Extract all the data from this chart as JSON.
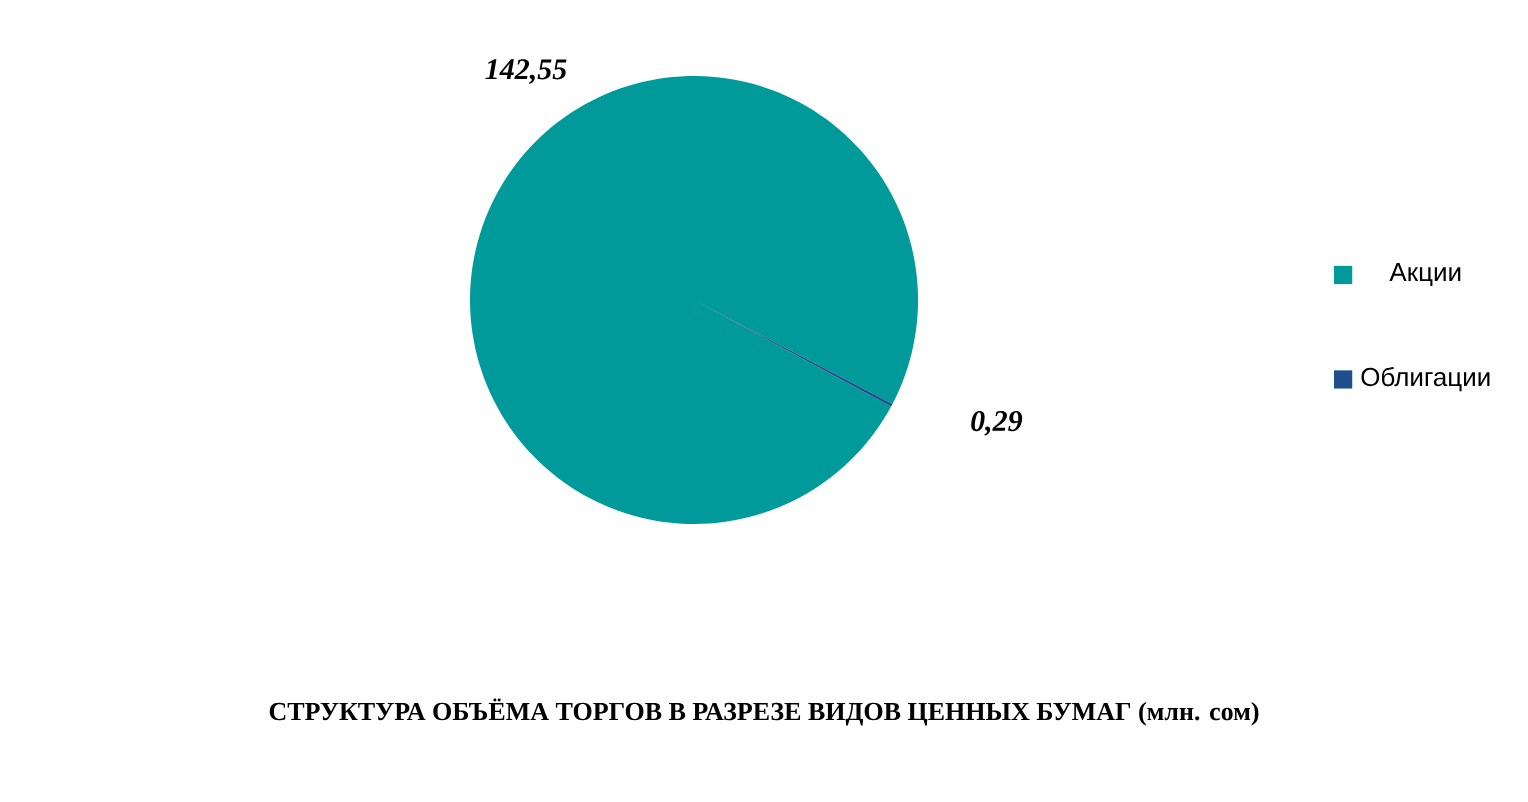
{
  "chart_data": {
    "type": "pie",
    "title": "СТРУКТУРА ОБЪЁМА ТОРГОВ В РАЗРЕЗЕ ВИДОВ ЦЕННЫХ БУМАГ  (млн. сом)",
    "categories": [
      "Акции",
      "Облигации"
    ],
    "values": [
      142.55,
      0.29
    ],
    "value_labels": [
      "142,55",
      "0,29"
    ],
    "colors": [
      "#009a9a",
      "#1f4e8c"
    ],
    "legend": "right"
  }
}
